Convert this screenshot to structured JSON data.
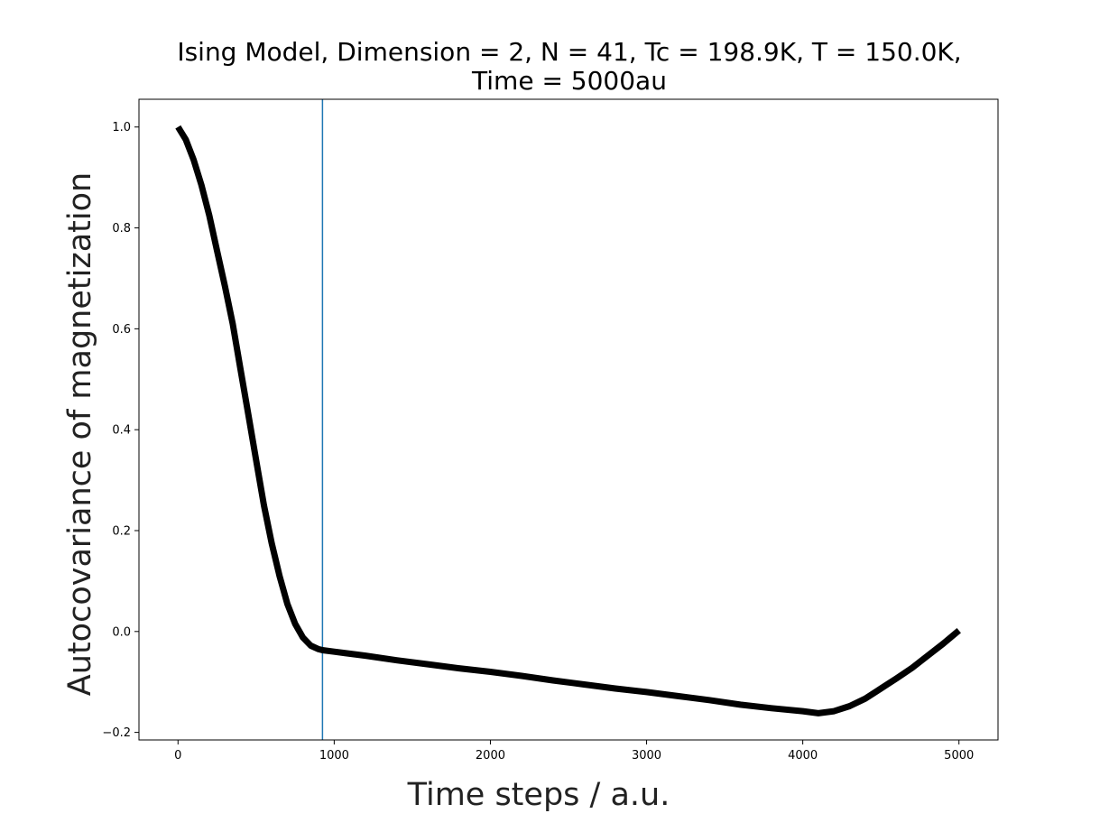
{
  "chart_data": {
    "type": "line",
    "title_lines": [
      "Ising Model, Dimension = 2, N = 41, Tc = 198.9K, T = 150.0K,",
      "Time = 5000au"
    ],
    "xlabel": "Time steps / a.u.",
    "ylabel": "Autocovariance of magnetization",
    "xlim": [
      -250,
      5250
    ],
    "ylim": [
      -0.215,
      1.055
    ],
    "xticks": [
      0,
      1000,
      2000,
      3000,
      4000,
      5000
    ],
    "xtick_labels": [
      "0",
      "1000",
      "2000",
      "3000",
      "4000",
      "5000"
    ],
    "yticks": [
      -0.2,
      0.0,
      0.2,
      0.4,
      0.6,
      0.8,
      1.0
    ],
    "ytick_labels": [
      "−0.2",
      "0.0",
      "0.2",
      "0.4",
      "0.6",
      "0.8",
      "1.0"
    ],
    "grid": false,
    "vline": {
      "x": 925,
      "color": "#1f77b4"
    },
    "series": [
      {
        "color": "#000000",
        "x": [
          0,
          50,
          100,
          150,
          200,
          250,
          300,
          350,
          400,
          450,
          500,
          550,
          600,
          650,
          700,
          750,
          800,
          850,
          900,
          925,
          1000,
          1200,
          1400,
          1600,
          1800,
          2000,
          2200,
          2400,
          2600,
          2800,
          3000,
          3200,
          3400,
          3600,
          3800,
          4000,
          4100,
          4200,
          4300,
          4400,
          4500,
          4600,
          4700,
          4800,
          4900,
          5000
        ],
        "y": [
          1.0,
          0.975,
          0.935,
          0.885,
          0.825,
          0.755,
          0.685,
          0.61,
          0.52,
          0.43,
          0.34,
          0.25,
          0.175,
          0.11,
          0.055,
          0.015,
          -0.012,
          -0.028,
          -0.035,
          -0.037,
          -0.04,
          -0.048,
          -0.057,
          -0.065,
          -0.073,
          -0.08,
          -0.088,
          -0.097,
          -0.105,
          -0.113,
          -0.12,
          -0.128,
          -0.136,
          -0.145,
          -0.152,
          -0.158,
          -0.162,
          -0.158,
          -0.148,
          -0.133,
          -0.113,
          -0.093,
          -0.072,
          -0.048,
          -0.024,
          0.002
        ]
      }
    ]
  }
}
